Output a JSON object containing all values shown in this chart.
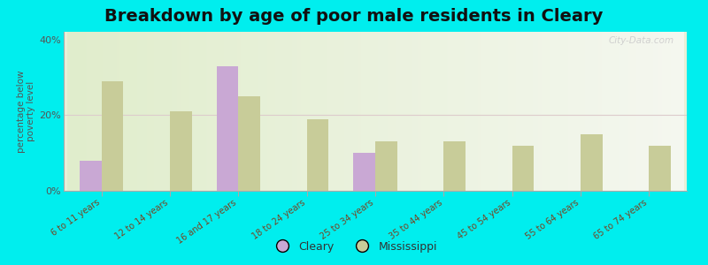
{
  "title": "Breakdown by age of poor male residents in Cleary",
  "ylabel": "percentage below\npoverty level",
  "categories": [
    "6 to 11 years",
    "12 to 14 years",
    "16 and 17 years",
    "18 to 24 years",
    "25 to 34 years",
    "35 to 44 years",
    "45 to 54 years",
    "55 to 64 years",
    "65 to 74 years"
  ],
  "cleary_values": [
    8,
    0,
    33,
    0,
    10,
    0,
    0,
    0,
    0
  ],
  "mississippi_values": [
    29,
    21,
    25,
    19,
    13,
    13,
    12,
    15,
    12
  ],
  "cleary_color": "#c9a8d4",
  "mississippi_color": "#c8cc99",
  "background_color": "#00eeee",
  "plot_bg_topleft": "#dce8cc",
  "plot_bg_topright": "#f0f4e8",
  "plot_bg_bottom": "#f8faf2",
  "ylim": [
    0,
    42
  ],
  "yticks": [
    0,
    20,
    40
  ],
  "ytick_labels": [
    "0%",
    "20%",
    "40%"
  ],
  "bar_width": 0.32,
  "title_fontsize": 14,
  "axis_label_fontsize": 7.5,
  "tick_fontsize": 8,
  "legend_labels": [
    "Cleary",
    "Mississippi"
  ],
  "watermark": "City-Data.com"
}
